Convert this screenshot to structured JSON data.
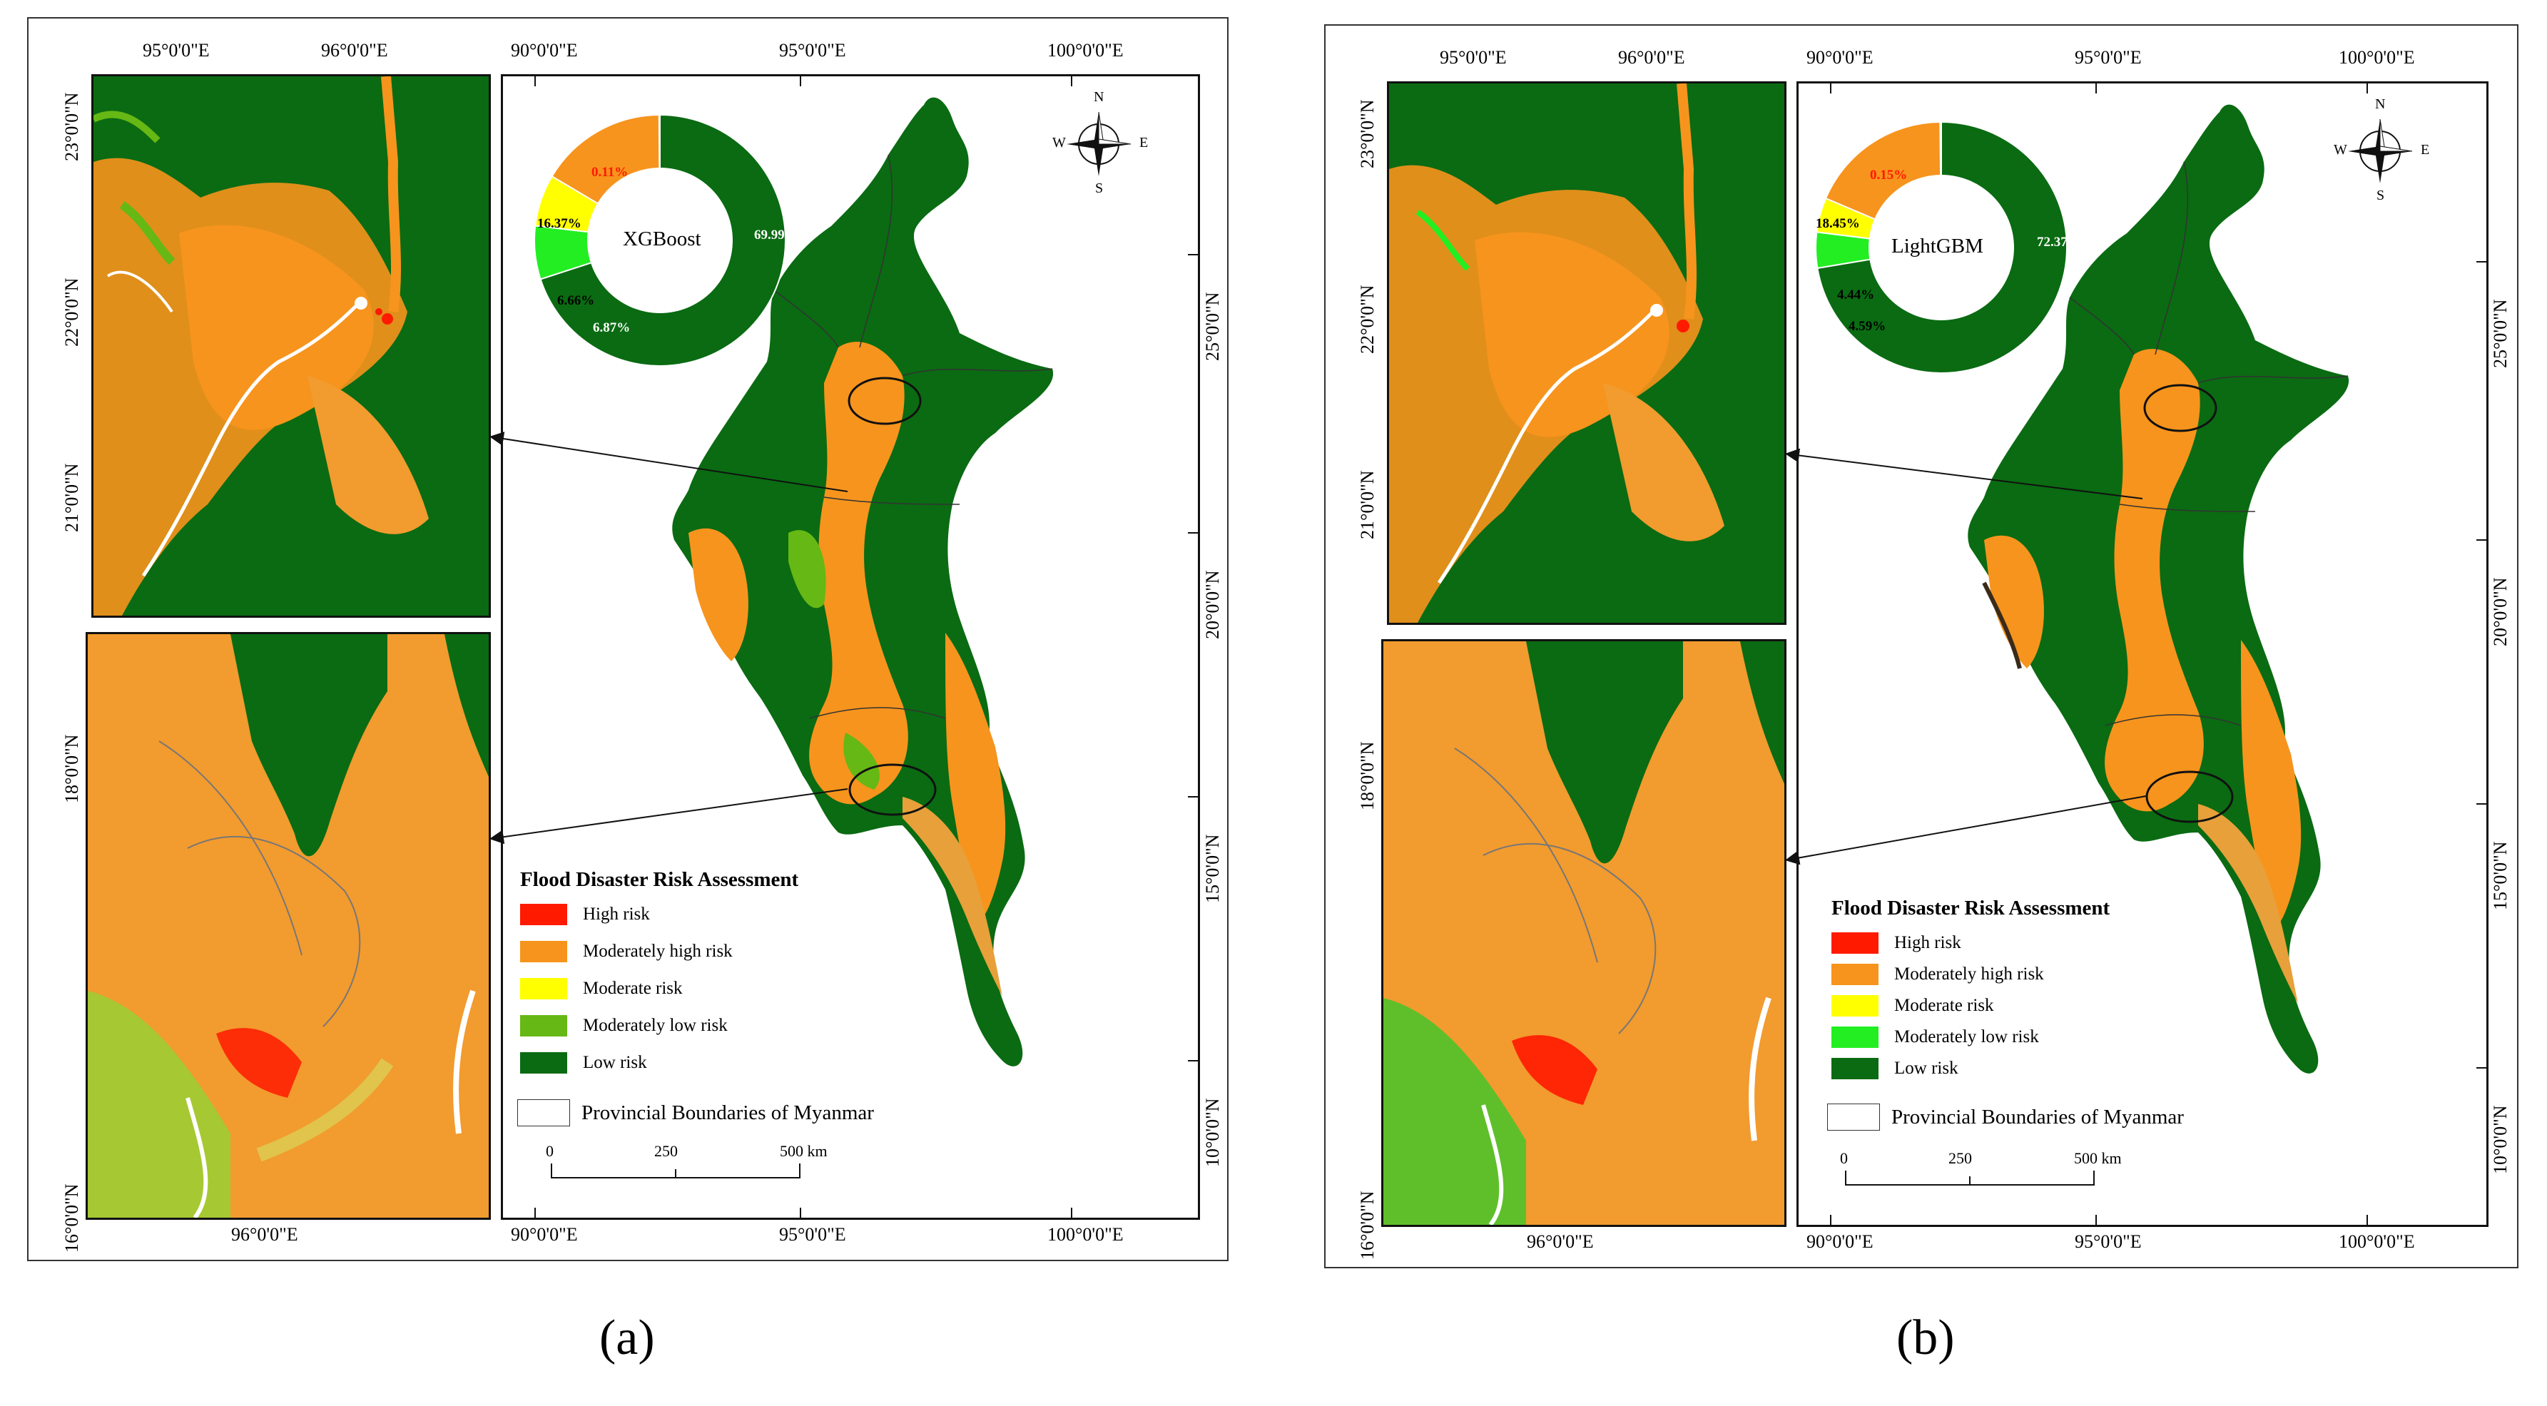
{
  "figure": {
    "panels": [
      {
        "caption": "(a)",
        "model": "XGBoost",
        "top_lon_labels": [
          "95°0'0\"E",
          "96°0'0\"E",
          "90°0'0\"E",
          "95°0'0\"E",
          "100°0'0\"E"
        ],
        "bottom_lon_labels": [
          "96°0'0\"E",
          "90°0'0\"E",
          "95°0'0\"E",
          "100°0'0\"E"
        ],
        "inset_top_lat_labels": [
          "23°0'0\"N",
          "22°0'0\"N",
          "21°0'0\"N"
        ],
        "inset_bottom_lat_labels": [
          "18°0'0\"N",
          "16°0'0\"N"
        ],
        "main_lat_labels": [
          "25°0'0\"N",
          "20°0'0\"N",
          "15°0'0\"N",
          "10°0'0\"N"
        ],
        "risk_shares": {
          "high": {
            "label": "0.11%",
            "value": 0.11
          },
          "moderately_high": {
            "label": "16.37%",
            "value": 16.37
          },
          "moderate": {
            "label": "6.66%",
            "value": 6.66
          },
          "moderately_low": {
            "label": "6.87%",
            "value": 6.87
          },
          "low": {
            "label": "69.99%",
            "value": 69.99
          }
        }
      },
      {
        "caption": "(b)",
        "model": "LightGBM",
        "top_lon_labels": [
          "95°0'0\"E",
          "96°0'0\"E",
          "90°0'0\"E",
          "95°0'0\"E",
          "100°0'0\"E"
        ],
        "bottom_lon_labels": [
          "96°0'0\"E",
          "90°0'0\"E",
          "95°0'0\"E",
          "100°0'0\"E"
        ],
        "inset_top_lat_labels": [
          "23°0'0\"N",
          "22°0'0\"N",
          "21°0'0\"N"
        ],
        "inset_bottom_lat_labels": [
          "18°0'0\"N",
          "16°0'0\"N"
        ],
        "main_lat_labels": [
          "25°0'0\"N",
          "20°0'0\"N",
          "15°0'0\"N",
          "10°0'0\"N"
        ],
        "risk_shares": {
          "high": {
            "label": "0.15%",
            "value": 0.15
          },
          "moderately_high": {
            "label": "18.45%",
            "value": 18.45
          },
          "moderate": {
            "label": "4.44%",
            "value": 4.44
          },
          "moderately_low": {
            "label": "4.59%",
            "value": 4.59
          },
          "low": {
            "label": "72.37%",
            "value": 72.37
          }
        }
      }
    ],
    "compass": {
      "n": "N",
      "s": "S",
      "e": "E",
      "w": "W"
    },
    "legend": {
      "title": "Flood Disaster Risk Assessment",
      "items": [
        {
          "label": "High risk",
          "color": "#ff1a00"
        },
        {
          "label": "Moderately high risk",
          "color": "#f7941d"
        },
        {
          "label": "Moderate risk",
          "color": "#ffff00"
        },
        {
          "label": "Moderately low risk",
          "color": "#66b814"
        },
        {
          "label": "Low risk",
          "color": "#0a6b12"
        }
      ],
      "items_b": [
        {
          "label": "High risk",
          "color": "#ff1a00"
        },
        {
          "label": "Moderately high risk",
          "color": "#f7941d"
        },
        {
          "label": "Moderate risk",
          "color": "#ffff00"
        },
        {
          "label": "Moderately low risk",
          "color": "#22ee22"
        },
        {
          "label": "Low risk",
          "color": "#0a6b12"
        }
      ],
      "boundary_label": "Provincial Boundaries of Myanmar"
    },
    "scale_bar": {
      "ticks": [
        "0",
        "250",
        "500 km"
      ]
    },
    "colors": {
      "high": "#ff1a00",
      "moderately_high": "#f7941d",
      "moderate": "#ffff00",
      "moderately_low_a": "#66b814",
      "moderately_low_b": "#22ee22",
      "low": "#0a6b12"
    }
  }
}
